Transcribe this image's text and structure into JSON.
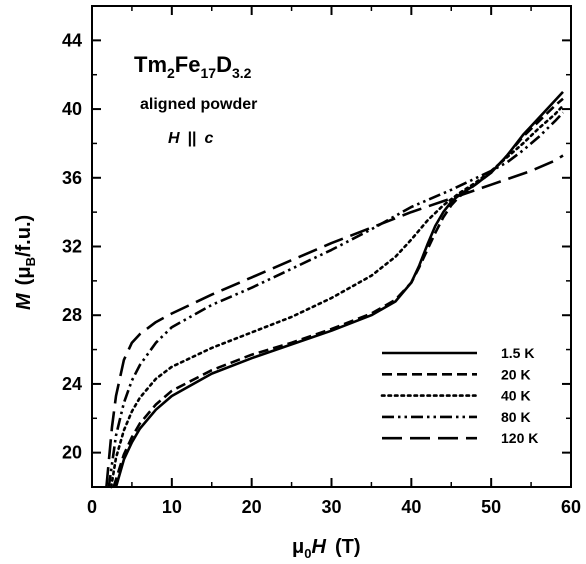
{
  "chart_data": {
    "type": "line",
    "title_parts": {
      "formula_tm": "Tm",
      "formula_tm_sub": "2",
      "formula_fe": "Fe",
      "formula_fe_sub": "17",
      "formula_d": "D",
      "formula_d_sub": "3.2"
    },
    "subtitle": "aligned powder",
    "field_note": {
      "h": "H",
      "mid": "||",
      "c": "c"
    },
    "xlabel_parts": {
      "mu": "μ",
      "sub": "0",
      "h": "H",
      "unit": "(T)"
    },
    "ylabel_parts": {
      "m": "M",
      "open": "(μ",
      "sub": "B",
      "unit": "/f.u.)"
    },
    "xlim": [
      0,
      60
    ],
    "ylim": [
      18,
      46
    ],
    "x_ticks": [
      "0",
      "10",
      "20",
      "30",
      "40",
      "50",
      "60"
    ],
    "y_ticks": [
      "20",
      "24",
      "28",
      "32",
      "36",
      "40",
      "44"
    ],
    "legend_position": "bottom-right",
    "series": [
      {
        "name": "1.5 K",
        "dash": "solid",
        "x": [
          3,
          4,
          5,
          6,
          8,
          10,
          15,
          20,
          25,
          30,
          35,
          38,
          40,
          41,
          42,
          43,
          44,
          45,
          46,
          48,
          50,
          52,
          54,
          56,
          58,
          59
        ],
        "y": [
          18.0,
          19.6,
          20.6,
          21.4,
          22.5,
          23.3,
          24.6,
          25.5,
          26.3,
          27.1,
          28.0,
          28.8,
          29.9,
          30.9,
          32.1,
          33.2,
          34.0,
          34.6,
          35.0,
          35.6,
          36.3,
          37.3,
          38.5,
          39.5,
          40.5,
          41.0
        ]
      },
      {
        "name": "20 K",
        "dash": "short-dash",
        "x": [
          2.7,
          4,
          5,
          6,
          8,
          10,
          15,
          20,
          25,
          30,
          35,
          38,
          40,
          41,
          42,
          43,
          44,
          45,
          46,
          48,
          50,
          52,
          54,
          56,
          58,
          59
        ],
        "y": [
          18.0,
          19.9,
          20.9,
          21.7,
          22.8,
          23.6,
          24.8,
          25.7,
          26.4,
          27.2,
          28.1,
          28.9,
          29.9,
          30.8,
          31.8,
          32.8,
          33.7,
          34.4,
          34.9,
          35.6,
          36.3,
          37.3,
          38.4,
          39.3,
          40.2,
          40.6
        ]
      },
      {
        "name": "40 K",
        "dash": "dotted",
        "x": [
          2.4,
          3,
          4,
          5,
          6,
          8,
          10,
          15,
          20,
          25,
          30,
          35,
          38,
          40,
          42,
          44,
          46,
          48,
          50,
          52,
          54,
          56,
          58,
          59
        ],
        "y": [
          18.0,
          19.7,
          21.3,
          22.4,
          23.2,
          24.3,
          25.0,
          26.1,
          27.0,
          27.9,
          29.0,
          30.3,
          31.4,
          32.4,
          33.5,
          34.4,
          35.1,
          35.7,
          36.4,
          37.2,
          38.0,
          38.9,
          39.7,
          40.2
        ]
      },
      {
        "name": "80 K",
        "dash": "dash-dot-dot",
        "x": [
          2.1,
          3,
          4,
          5,
          6,
          8,
          10,
          15,
          20,
          25,
          30,
          35,
          40,
          45,
          50,
          52,
          54,
          56,
          58,
          59
        ],
        "y": [
          18.0,
          21.0,
          22.9,
          24.2,
          25.1,
          26.4,
          27.3,
          28.6,
          29.6,
          30.7,
          31.8,
          33.0,
          34.3,
          35.3,
          36.4,
          36.9,
          37.6,
          38.4,
          39.3,
          39.8
        ]
      },
      {
        "name": "120 K",
        "dash": "long-dash",
        "x": [
          1.8,
          2.5,
          3,
          4,
          5,
          6,
          8,
          10,
          15,
          20,
          25,
          30,
          35,
          40,
          45,
          50,
          55,
          58,
          59
        ],
        "y": [
          18.0,
          21.5,
          23.3,
          25.4,
          26.4,
          26.9,
          27.6,
          28.1,
          29.2,
          30.2,
          31.2,
          32.2,
          33.1,
          34.0,
          34.8,
          35.6,
          36.4,
          37.0,
          37.3
        ]
      }
    ]
  }
}
